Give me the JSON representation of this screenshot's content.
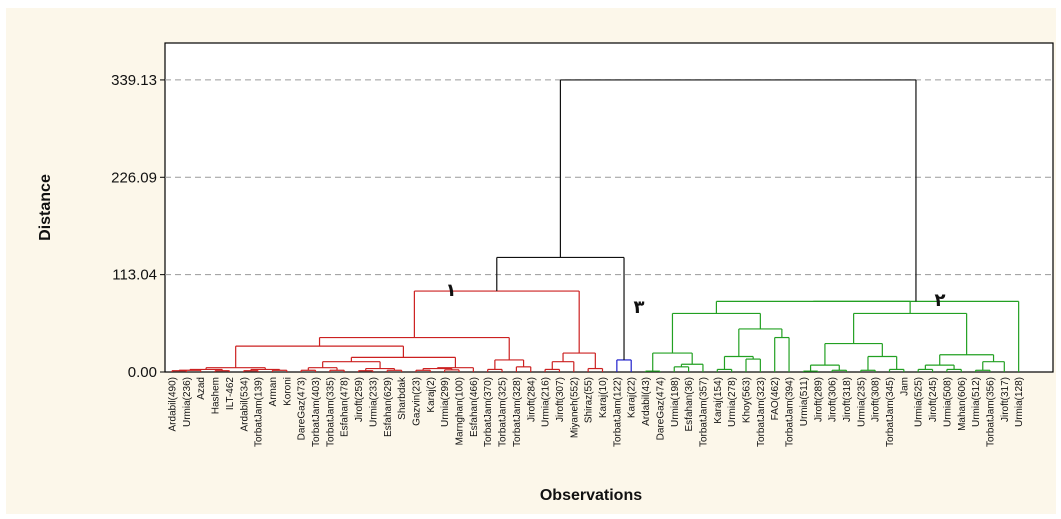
{
  "chart_data": {
    "type": "dendrogram",
    "title": "",
    "xlabel": "Observations",
    "ylabel": "Distance",
    "ylim": [
      0,
      382
    ],
    "y_ticks": [
      "0.00",
      "113.04",
      "226.09",
      "339.13"
    ],
    "y_tick_values": [
      0,
      113.04,
      226.09,
      339.13
    ],
    "grid": "dashed horizontal",
    "leaves": [
      "Ardabil(490)",
      "Urmia(236)",
      "Azad",
      "Hashem",
      "ILT-462",
      "Ardabil(534)",
      "TorbatJam(139)",
      "Arman",
      "Koroni",
      "DareGaz(473)",
      "TorbatJam(403)",
      "TorbatJam(335)",
      "Esfahan(478)",
      "Jiroft(259)",
      "Urmia(233)",
      "Esfahan(629)",
      "Sharbdak",
      "Gazvin(23)",
      "Karaj(2)",
      "Urmia(299)",
      "Marnghan(100)",
      "Esfahan(466)",
      "TorbatJam(370)",
      "TorbatJam(325)",
      "TorbatJam(328)",
      "Jiroft(284)",
      "Urmia(216)",
      "Jiroft(307)",
      "Miyaneh(552)",
      "Shiraz(55)",
      "Karaj(10)",
      "TorbatJam(122)",
      "Karaj(22)",
      "Ardabil(43)",
      "DareGaz(474)",
      "Urmia(198)",
      "Esfahan(36)",
      "TorbatJam(357)",
      "Karaj(154)",
      "Urmia(278)",
      "Khoy(563)",
      "TorbatJam(323)",
      "FAO(462)",
      "TorbatJam(394)",
      "Urmia(511)",
      "Jiroft(289)",
      "Jiroft(306)",
      "Jiroft(318)",
      "Urmia(235)",
      "Jiroft(308)",
      "TorbatJam(345)",
      "Jam",
      "Urmia(525)",
      "Jiroft(245)",
      "Urmia(508)",
      "Mahan(606)",
      "Urmia(512)",
      "TorbatJam(356)",
      "Jiroft(317)",
      "Urmia(128)"
    ],
    "clusters": [
      {
        "label": "۱",
        "color": "#cc2020"
      },
      {
        "label": "۳",
        "color": "#2020cc"
      },
      {
        "label": "۲",
        "color": "#22a022"
      }
    ],
    "link_color": "#111111"
  }
}
